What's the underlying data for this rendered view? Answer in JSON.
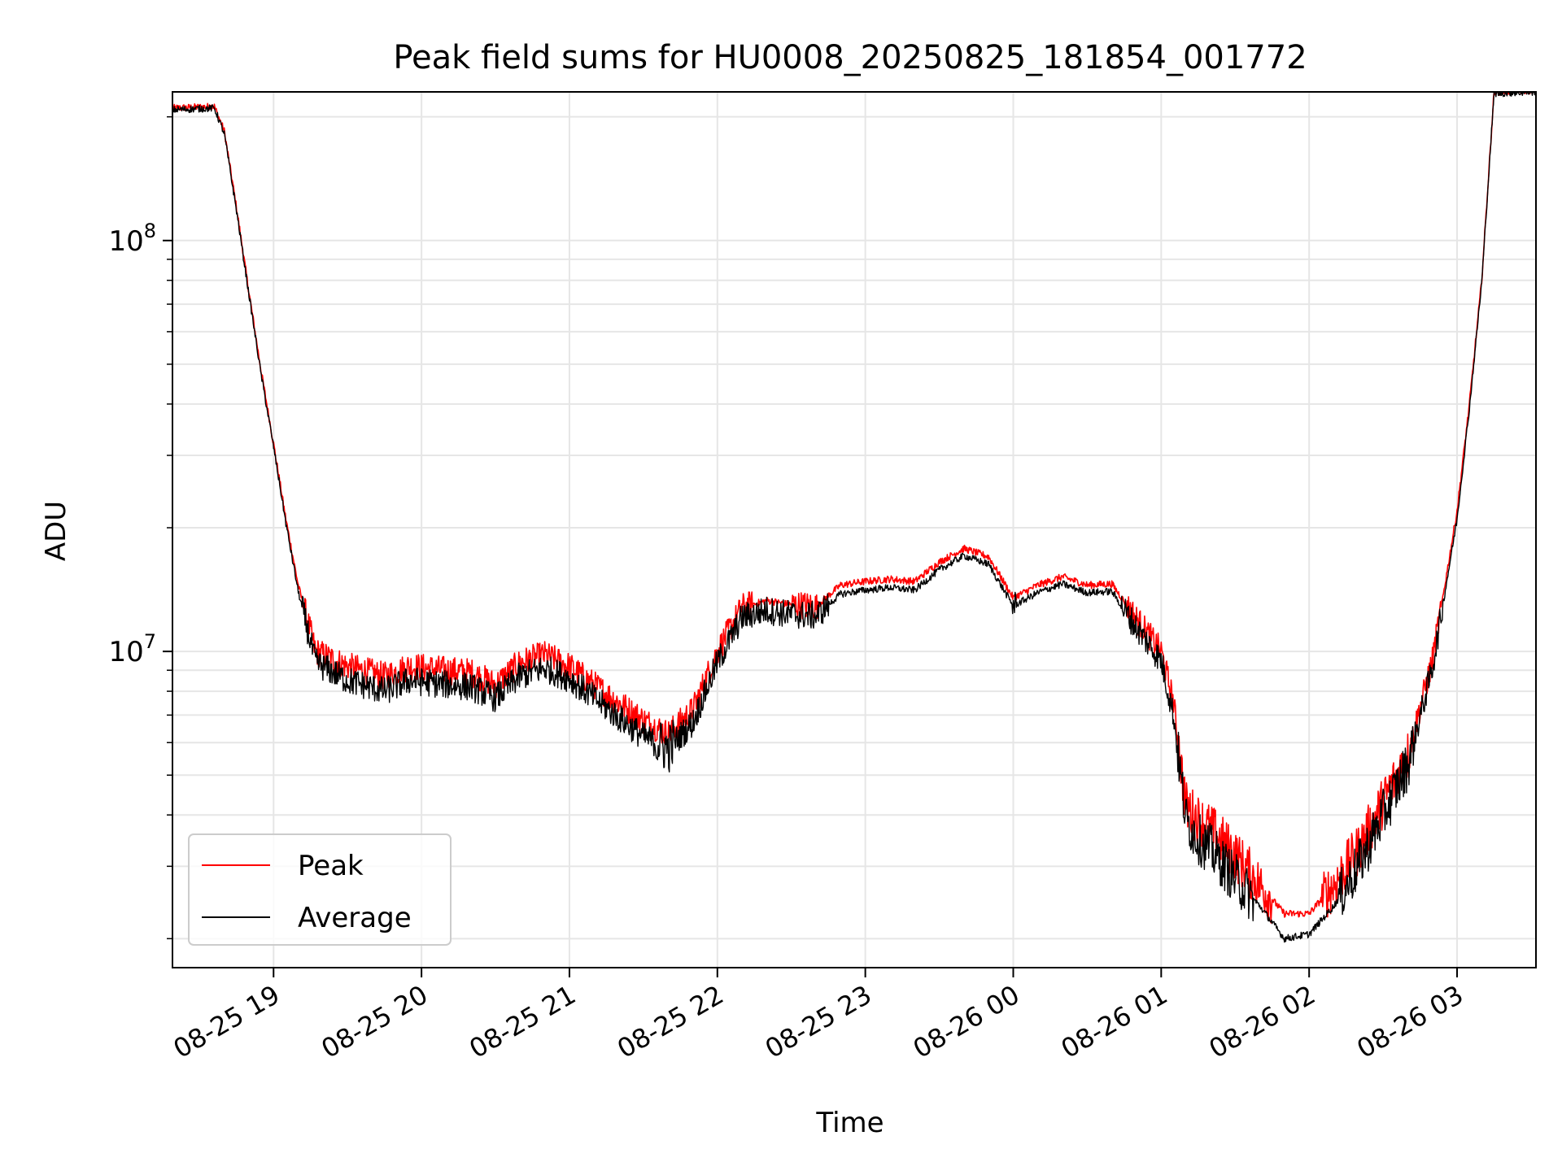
{
  "chart_data": {
    "type": "line",
    "title": "Peak field sums for HU0008_20250825_181854_001772",
    "xlabel": "Time",
    "ylabel": "ADU",
    "yscale": "log",
    "xlim": [
      "2025-08-25 18:19",
      "2025-08-26 03:32"
    ],
    "ylim": [
      1700000,
      230000000
    ],
    "grid": true,
    "grid_minor": true,
    "legend": "lower-left",
    "x_ticks": [
      {
        "t": "2025-08-25 19:00",
        "label": "08-25 19"
      },
      {
        "t": "2025-08-25 20:00",
        "label": "08-25 20"
      },
      {
        "t": "2025-08-25 21:00",
        "label": "08-25 21"
      },
      {
        "t": "2025-08-25 22:00",
        "label": "08-25 22"
      },
      {
        "t": "2025-08-25 23:00",
        "label": "08-25 23"
      },
      {
        "t": "2025-08-26 00:00",
        "label": "08-26 00"
      },
      {
        "t": "2025-08-26 01:00",
        "label": "08-26 01"
      },
      {
        "t": "2025-08-26 02:00",
        "label": "08-26 02"
      },
      {
        "t": "2025-08-26 03:00",
        "label": "08-26 03"
      }
    ],
    "y_ticks": [
      {
        "value": 10000000,
        "base": "10",
        "exp": "7"
      },
      {
        "value": 100000000,
        "base": "10",
        "exp": "8"
      }
    ],
    "series": [
      {
        "name": "Peak",
        "color": "#ff0000",
        "x": [
          "2025-08-25 18:19",
          "2025-08-25 18:36",
          "2025-08-25 18:40",
          "2025-08-25 18:45",
          "2025-08-25 18:50",
          "2025-08-25 18:55",
          "2025-08-25 19:00",
          "2025-08-25 19:05",
          "2025-08-25 19:10",
          "2025-08-25 19:17",
          "2025-08-25 19:30",
          "2025-08-25 19:45",
          "2025-08-25 19:55",
          "2025-08-25 20:10",
          "2025-08-25 20:20",
          "2025-08-25 20:30",
          "2025-08-25 20:40",
          "2025-08-25 20:50",
          "2025-08-25 21:00",
          "2025-08-25 21:10",
          "2025-08-25 21:20",
          "2025-08-25 21:30",
          "2025-08-25 21:40",
          "2025-08-25 21:50",
          "2025-08-25 22:00",
          "2025-08-25 22:10",
          "2025-08-25 22:20",
          "2025-08-25 22:30",
          "2025-08-25 22:40",
          "2025-08-25 22:50",
          "2025-08-25 23:00",
          "2025-08-25 23:10",
          "2025-08-25 23:20",
          "2025-08-25 23:30",
          "2025-08-25 23:40",
          "2025-08-25 23:50",
          "2025-08-26 00:00",
          "2025-08-26 00:10",
          "2025-08-26 00:20",
          "2025-08-26 00:30",
          "2025-08-26 00:40",
          "2025-08-26 00:50",
          "2025-08-26 01:00",
          "2025-08-26 01:05",
          "2025-08-26 01:10",
          "2025-08-26 01:15",
          "2025-08-26 01:20",
          "2025-08-26 01:30",
          "2025-08-26 01:40",
          "2025-08-26 01:50",
          "2025-08-26 02:00",
          "2025-08-26 02:10",
          "2025-08-26 02:20",
          "2025-08-26 02:30",
          "2025-08-26 02:40",
          "2025-08-26 02:50",
          "2025-08-26 03:00",
          "2025-08-26 03:05",
          "2025-08-26 03:10",
          "2025-08-26 03:15",
          "2025-08-26 03:32"
        ],
        "y": [
          210000000,
          212000000,
          185000000,
          120000000,
          75000000,
          48000000,
          32000000,
          21000000,
          14500000,
          10000000,
          9200000,
          8700000,
          9200000,
          9000000,
          8900000,
          8300000,
          9400000,
          9800000,
          9200000,
          8300000,
          7500000,
          6800000,
          6300000,
          7200000,
          10000000,
          12800000,
          13300000,
          13000000,
          12900000,
          14500000,
          14800000,
          15000000,
          14800000,
          16500000,
          17800000,
          17000000,
          13500000,
          14500000,
          15200000,
          14500000,
          14600000,
          12000000,
          10000000,
          7500000,
          4200000,
          3900000,
          3700000,
          3200000,
          2700000,
          2300000,
          2300000,
          2700000,
          3300000,
          4300000,
          5600000,
          9500000,
          22000000,
          40000000,
          80000000,
          230000000,
          232000000
        ]
      },
      {
        "name": "Average",
        "color": "#000000",
        "x": [
          "2025-08-25 18:19",
          "2025-08-25 18:36",
          "2025-08-25 18:40",
          "2025-08-25 18:45",
          "2025-08-25 18:50",
          "2025-08-25 18:55",
          "2025-08-25 19:00",
          "2025-08-25 19:05",
          "2025-08-25 19:10",
          "2025-08-25 19:17",
          "2025-08-25 19:30",
          "2025-08-25 19:45",
          "2025-08-25 19:55",
          "2025-08-25 20:10",
          "2025-08-25 20:20",
          "2025-08-25 20:30",
          "2025-08-25 20:40",
          "2025-08-25 20:50",
          "2025-08-25 21:00",
          "2025-08-25 21:10",
          "2025-08-25 21:20",
          "2025-08-25 21:30",
          "2025-08-25 21:40",
          "2025-08-25 21:50",
          "2025-08-25 22:00",
          "2025-08-25 22:10",
          "2025-08-25 22:20",
          "2025-08-25 22:30",
          "2025-08-25 22:40",
          "2025-08-25 22:50",
          "2025-08-25 23:00",
          "2025-08-25 23:10",
          "2025-08-25 23:20",
          "2025-08-25 23:30",
          "2025-08-25 23:40",
          "2025-08-25 23:50",
          "2025-08-26 00:00",
          "2025-08-26 00:10",
          "2025-08-26 00:20",
          "2025-08-26 00:30",
          "2025-08-26 00:40",
          "2025-08-26 00:50",
          "2025-08-26 01:00",
          "2025-08-26 01:05",
          "2025-08-26 01:10",
          "2025-08-26 01:15",
          "2025-08-26 01:20",
          "2025-08-26 01:30",
          "2025-08-26 01:40",
          "2025-08-26 01:50",
          "2025-08-26 02:00",
          "2025-08-26 02:10",
          "2025-08-26 02:20",
          "2025-08-26 02:30",
          "2025-08-26 02:40",
          "2025-08-26 02:50",
          "2025-08-26 03:00",
          "2025-08-26 03:05",
          "2025-08-26 03:10",
          "2025-08-26 03:15",
          "2025-08-26 03:32"
        ],
        "y": [
          208000000,
          210000000,
          182000000,
          118000000,
          74000000,
          47000000,
          31500000,
          20500000,
          14000000,
          9400000,
          8500000,
          8000000,
          8500000,
          8300000,
          8200000,
          7700000,
          8700000,
          9100000,
          8600000,
          7700000,
          6900000,
          6200000,
          5800000,
          6700000,
          9400000,
          12100000,
          12600000,
          12300000,
          12200000,
          13800000,
          14100000,
          14300000,
          14100000,
          15800000,
          17100000,
          16300000,
          12900000,
          13900000,
          14600000,
          13900000,
          14000000,
          11400000,
          9500000,
          7000000,
          3900000,
          3500000,
          3300000,
          2800000,
          2400000,
          2000000,
          2050000,
          2400000,
          3000000,
          4000000,
          5300000,
          9100000,
          21000000,
          39000000,
          79000000,
          228000000,
          230000000
        ]
      }
    ]
  }
}
